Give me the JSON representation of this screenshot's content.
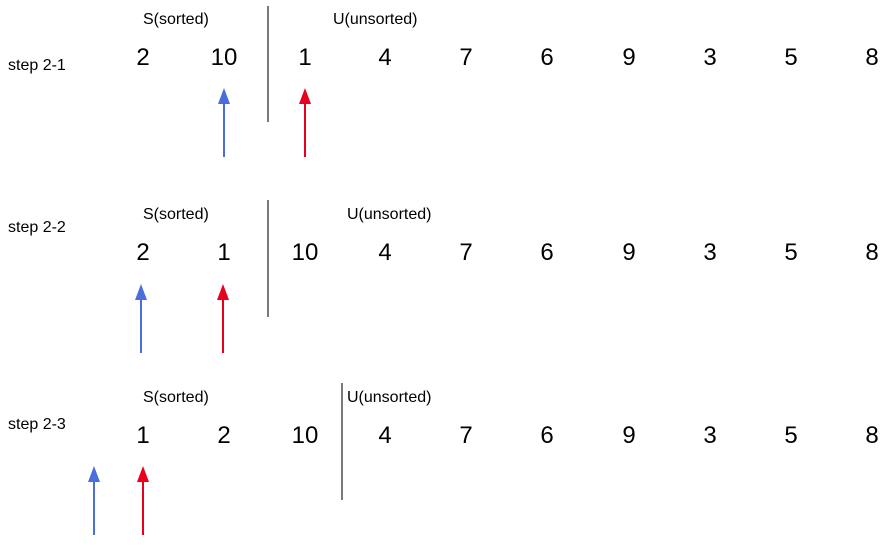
{
  "steps": [
    {
      "label": "step 2-1",
      "sorted_label": "S(sorted)",
      "unsorted_label": "U(unsorted)",
      "values": [
        "2",
        "10",
        "1",
        "4",
        "7",
        "6",
        "9",
        "3",
        "5",
        "8"
      ]
    },
    {
      "label": "step 2-2",
      "sorted_label": "S(sorted)",
      "unsorted_label": "U(unsorted)",
      "values": [
        "2",
        "1",
        "10",
        "4",
        "7",
        "6",
        "9",
        "3",
        "5",
        "8"
      ]
    },
    {
      "label": "step 2-3",
      "sorted_label": "S(sorted)",
      "unsorted_label": "U(unsorted)",
      "values": [
        "1",
        "2",
        "10",
        "4",
        "7",
        "6",
        "9",
        "3",
        "5",
        "8"
      ]
    }
  ],
  "colors": {
    "blue_arrow": "#4a6fdc",
    "red_arrow": "#e8001c",
    "divider": "#7a7a7a"
  }
}
